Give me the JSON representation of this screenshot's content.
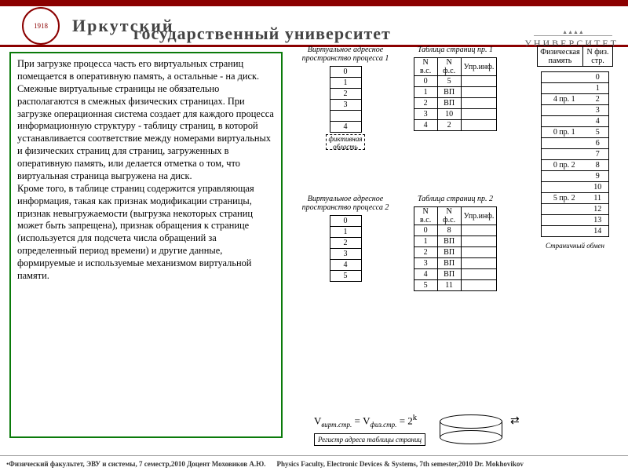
{
  "header": {
    "title1": "Иркутский",
    "title2": "государственный университет",
    "right_label": "УНИВЕРСИТЕТ",
    "logo_text": "1918"
  },
  "textbox": {
    "content": "При загрузке процесса часть его виртуальных страниц помещается в оперативную память, а остальные - на диск.\nСмежные виртуальные страницы не обязательно располагаются в смежных физических страницах. При загрузке операционная система создает для каждого процесса информационную структуру - таблицу страниц, в которой устанавливается соответствие между номерами виртуальных и физических страниц для страниц, загруженных в оперативную память, или делается отметка о том, что виртуальная страница выгружена на диск.\nКроме того, в таблице страниц содержится управляющая информация, такая как признак модификации страницы, признак невыгружаемости (выгрузка некоторых страниц может быть запрещена), признак обращения к странице (используется для подсчета числа обращений за определенный период времени) и другие данные, формируемые и используемые механизмом виртуальной памяти."
  },
  "vas1": {
    "title": "Виртуальное адресное\nпространство процесса 1",
    "pages": [
      "0",
      "1",
      "2",
      "3",
      "",
      "4"
    ],
    "fict": "фиктивная\nобласть"
  },
  "vas2": {
    "title": "Виртуальное адресное\nпространство процесса 2",
    "pages": [
      "0",
      "1",
      "2",
      "3",
      "4",
      "5"
    ]
  },
  "pt1": {
    "title": "Таблица страниц пр. 1",
    "headers": [
      "N в.с.",
      "N ф.с.",
      "Упр.инф."
    ],
    "rows": [
      [
        "0",
        "5",
        ""
      ],
      [
        "1",
        "ВП",
        ""
      ],
      [
        "2",
        "ВП",
        ""
      ],
      [
        "3",
        "10",
        ""
      ],
      [
        "4",
        "2",
        ""
      ]
    ]
  },
  "pt2": {
    "title": "Таблица страниц пр. 2",
    "headers": [
      "N в.с.",
      "N ф.с.",
      "Упр.инф."
    ],
    "rows": [
      [
        "0",
        "8",
        ""
      ],
      [
        "1",
        "ВП",
        ""
      ],
      [
        "2",
        "ВП",
        ""
      ],
      [
        "3",
        "ВП",
        ""
      ],
      [
        "4",
        "ВП",
        ""
      ],
      [
        "5",
        "11",
        ""
      ]
    ]
  },
  "phys": {
    "title_l": "Физическая\nпамять",
    "title_r": "N физ.\nстр.",
    "rows": [
      [
        "",
        "0"
      ],
      [
        "",
        "1"
      ],
      [
        "4 пр. 1",
        "2"
      ],
      [
        "",
        "3"
      ],
      [
        "",
        "4"
      ],
      [
        "0 пр. 1",
        "5"
      ],
      [
        "",
        "6"
      ],
      [
        "",
        "7"
      ],
      [
        "0 пр. 2",
        "8"
      ],
      [
        "",
        "9"
      ],
      [
        "",
        "10"
      ],
      [
        "5 пр. 2",
        "11"
      ],
      [
        "",
        "12"
      ],
      [
        "",
        "13"
      ],
      [
        "",
        "14"
      ]
    ],
    "swap_label": "Страничный обмен"
  },
  "formula": {
    "text": "V_вирт.стр. = V_физ.стр. = 2",
    "exp": "k"
  },
  "register": "Регистр адреса таблицы страниц",
  "footer": {
    "ru": "Физический факультет, ЭВУ и системы, 7 семестр,2010 Доцент Моховиков А.Ю.",
    "en": "Physics Faculty, Electronic Devices & Systems, 7th semester,2010   Dr. Mokhovikov"
  }
}
